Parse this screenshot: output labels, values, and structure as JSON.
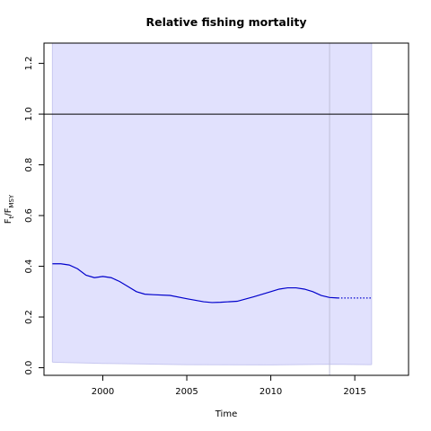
{
  "chart_data": {
    "type": "line",
    "title": "Relative fishing mortality",
    "xlabel": "Time",
    "ylabel": {
      "main": "F",
      "sub1": "t",
      "sep": "/F",
      "sub2": "MSY"
    },
    "xlim": [
      1996.5,
      2018.2
    ],
    "ylim": [
      -0.03,
      1.28
    ],
    "x_ticks": [
      {
        "value": 2000,
        "label": "2000"
      },
      {
        "value": 2005,
        "label": "2005"
      },
      {
        "value": 2010,
        "label": "2010"
      },
      {
        "value": 2015,
        "label": "2015"
      }
    ],
    "y_ticks": [
      {
        "value": 0.0,
        "label": "0.0"
      },
      {
        "value": 0.2,
        "label": "0.2"
      },
      {
        "value": 0.4,
        "label": "0.4"
      },
      {
        "value": 0.6,
        "label": "0.6"
      },
      {
        "value": 0.8,
        "label": "0.8"
      },
      {
        "value": 1.0,
        "label": "1.0"
      },
      {
        "value": 1.2,
        "label": "1.2"
      }
    ],
    "reference_line": {
      "y": 1.0
    },
    "vertical_line": {
      "x": 2013.5
    },
    "confidence_band": {
      "x": [
        1997,
        2000,
        2005,
        2010,
        2013.5,
        2016
      ],
      "lower": [
        0.022,
        0.017,
        0.012,
        0.011,
        0.014,
        0.012
      ],
      "upper": [
        1.28,
        1.28,
        1.28,
        1.28,
        1.28,
        1.28
      ]
    },
    "series": [
      {
        "values_x": [
          1997,
          1997.5,
          1998,
          1998.5,
          1999,
          1999.5,
          2000,
          2000.5,
          2001,
          2001.5,
          2002,
          2002.5,
          2003,
          2004,
          2005,
          2006,
          2006.5,
          2007,
          2008,
          2009,
          2010,
          2010.5,
          2011,
          2011.5,
          2012,
          2012.5,
          2013,
          2013.5,
          2014
        ],
        "values_y": [
          0.41,
          0.41,
          0.405,
          0.39,
          0.365,
          0.355,
          0.36,
          0.355,
          0.34,
          0.32,
          0.3,
          0.29,
          0.288,
          0.285,
          0.272,
          0.26,
          0.257,
          0.258,
          0.262,
          0.28,
          0.3,
          0.31,
          0.315,
          0.315,
          0.31,
          0.3,
          0.285,
          0.277,
          0.275
        ],
        "style": "solid"
      },
      {
        "values_x": [
          2014,
          2016
        ],
        "values_y": [
          0.275,
          0.275
        ],
        "style": "dotted"
      }
    ],
    "colors": {
      "band": "#e1e1fd",
      "band_edge": "#c8c8f0",
      "line": "#0000cc",
      "reference": "#000000",
      "vertical": "#c0c0d8"
    }
  }
}
